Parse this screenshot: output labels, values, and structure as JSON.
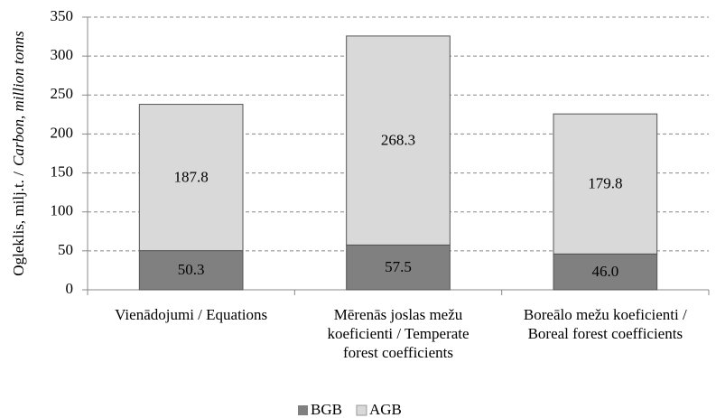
{
  "chart_data": {
    "type": "stacked_bar",
    "ylabel": [
      "Ogleklis, milj.t. /",
      "Carbon, million tonns"
    ],
    "categories": [
      "Vienādojumi / Equations",
      "Mērenās joslas mežu koeficienti / Temperate forest coefficients",
      "Boreālo mežu koeficienti / Boreal forest coefficients"
    ],
    "series": [
      {
        "name": "BGB",
        "color": "#808080",
        "values": [
          50.3,
          57.5,
          46.0
        ],
        "value_labels": [
          "50.3",
          "57.5",
          "46.0"
        ]
      },
      {
        "name": "AGB",
        "color": "#d9d9d9",
        "values": [
          187.8,
          268.3,
          179.8
        ]
      }
    ],
    "ylim": [
      0,
      350
    ],
    "yticks": [
      0,
      50,
      100,
      150,
      200,
      250,
      300,
      350
    ],
    "grid": true,
    "legend": "bottom"
  }
}
